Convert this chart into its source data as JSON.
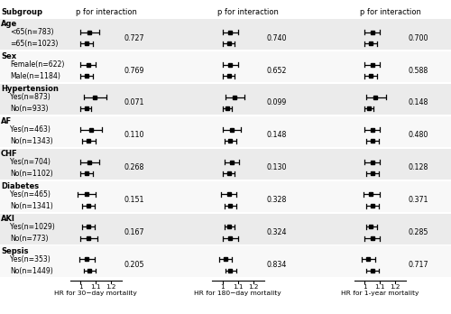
{
  "subgroups": [
    {
      "label": "Age",
      "header": true,
      "pkey": "age"
    },
    {
      "label": "<65(n=783)",
      "header": false,
      "d30": {
        "est": 1.06,
        "lo": 1.0,
        "hi": 1.12
      },
      "d180": {
        "est": 1.05,
        "lo": 1.0,
        "hi": 1.1
      },
      "d1y": {
        "est": 1.05,
        "lo": 1.0,
        "hi": 1.1
      }
    },
    {
      "label": "=65(n=1023)",
      "header": false,
      "d30": {
        "est": 1.04,
        "lo": 1.0,
        "hi": 1.08
      },
      "d180": {
        "est": 1.04,
        "lo": 1.0,
        "hi": 1.08
      },
      "d1y": {
        "est": 1.04,
        "lo": 1.0,
        "hi": 1.08
      }
    },
    {
      "label": "Sex",
      "header": true,
      "pkey": "sex"
    },
    {
      "label": "Female(n=622)",
      "header": false,
      "d30": {
        "est": 1.05,
        "lo": 1.0,
        "hi": 1.1
      },
      "d180": {
        "est": 1.05,
        "lo": 1.0,
        "hi": 1.1
      },
      "d1y": {
        "est": 1.05,
        "lo": 1.0,
        "hi": 1.1
      }
    },
    {
      "label": "Male(n=1184)",
      "header": false,
      "d30": {
        "est": 1.04,
        "lo": 1.0,
        "hi": 1.08
      },
      "d180": {
        "est": 1.04,
        "lo": 1.0,
        "hi": 1.08
      },
      "d1y": {
        "est": 1.04,
        "lo": 1.0,
        "hi": 1.08
      }
    },
    {
      "label": "Hypertension",
      "header": true,
      "pkey": "hypertension"
    },
    {
      "label": "Yes(n=873)",
      "header": false,
      "d30": {
        "est": 1.09,
        "lo": 1.02,
        "hi": 1.17
      },
      "d180": {
        "est": 1.08,
        "lo": 1.02,
        "hi": 1.14
      },
      "d1y": {
        "est": 1.07,
        "lo": 1.01,
        "hi": 1.14
      }
    },
    {
      "label": "No(n=933)",
      "header": false,
      "d30": {
        "est": 1.04,
        "lo": 1.0,
        "hi": 1.07
      },
      "d180": {
        "est": 1.03,
        "lo": 1.0,
        "hi": 1.06
      },
      "d1y": {
        "est": 1.03,
        "lo": 1.0,
        "hi": 1.06
      }
    },
    {
      "label": "AF",
      "header": true,
      "pkey": "af"
    },
    {
      "label": "Yes(n=463)",
      "header": false,
      "d30": {
        "est": 1.07,
        "lo": 1.0,
        "hi": 1.14
      },
      "d180": {
        "est": 1.06,
        "lo": 1.0,
        "hi": 1.12
      },
      "d1y": {
        "est": 1.05,
        "lo": 1.0,
        "hi": 1.1
      }
    },
    {
      "label": "No(n=1343)",
      "header": false,
      "d30": {
        "est": 1.05,
        "lo": 1.01,
        "hi": 1.1
      },
      "d180": {
        "est": 1.05,
        "lo": 1.01,
        "hi": 1.09
      },
      "d1y": {
        "est": 1.05,
        "lo": 1.01,
        "hi": 1.09
      }
    },
    {
      "label": "CHF",
      "header": true,
      "pkey": "chf"
    },
    {
      "label": "Yes(n=704)",
      "header": false,
      "d30": {
        "est": 1.06,
        "lo": 1.0,
        "hi": 1.12
      },
      "d180": {
        "est": 1.06,
        "lo": 1.01,
        "hi": 1.11
      },
      "d1y": {
        "est": 1.05,
        "lo": 1.0,
        "hi": 1.1
      }
    },
    {
      "label": "No(n=1102)",
      "header": false,
      "d30": {
        "est": 1.04,
        "lo": 1.0,
        "hi": 1.08
      },
      "d180": {
        "est": 1.04,
        "lo": 1.0,
        "hi": 1.08
      },
      "d1y": {
        "est": 1.05,
        "lo": 1.01,
        "hi": 1.09
      }
    },
    {
      "label": "Diabetes",
      "header": true,
      "pkey": "diabetes"
    },
    {
      "label": "Yes(n=465)",
      "header": false,
      "d30": {
        "est": 1.04,
        "lo": 0.98,
        "hi": 1.1
      },
      "d180": {
        "est": 1.04,
        "lo": 0.99,
        "hi": 1.09
      },
      "d1y": {
        "est": 1.04,
        "lo": 0.99,
        "hi": 1.1
      }
    },
    {
      "label": "No(n=1341)",
      "header": false,
      "d30": {
        "est": 1.05,
        "lo": 1.01,
        "hi": 1.09
      },
      "d180": {
        "est": 1.05,
        "lo": 1.01,
        "hi": 1.09
      },
      "d1y": {
        "est": 1.05,
        "lo": 1.01,
        "hi": 1.09
      }
    },
    {
      "label": "AKI",
      "header": true,
      "pkey": "aki"
    },
    {
      "label": "Yes(n=1029)",
      "header": false,
      "d30": {
        "est": 1.05,
        "lo": 1.01,
        "hi": 1.09
      },
      "d180": {
        "est": 1.04,
        "lo": 1.01,
        "hi": 1.08
      },
      "d1y": {
        "est": 1.04,
        "lo": 1.01,
        "hi": 1.08
      }
    },
    {
      "label": "No(n=773)",
      "header": false,
      "d30": {
        "est": 1.05,
        "lo": 1.0,
        "hi": 1.11
      },
      "d180": {
        "est": 1.05,
        "lo": 1.0,
        "hi": 1.1
      },
      "d1y": {
        "est": 1.05,
        "lo": 1.0,
        "hi": 1.1
      }
    },
    {
      "label": "Sepsis",
      "header": true,
      "pkey": "sepsis"
    },
    {
      "label": "Yes(n=353)",
      "header": false,
      "d30": {
        "est": 1.04,
        "lo": 0.99,
        "hi": 1.09
      },
      "d180": {
        "est": 1.02,
        "lo": 0.98,
        "hi": 1.06
      },
      "d1y": {
        "est": 1.02,
        "lo": 0.98,
        "hi": 1.07
      }
    },
    {
      "label": "No(n=1449)",
      "header": false,
      "d30": {
        "est": 1.06,
        "lo": 1.02,
        "hi": 1.1
      },
      "d180": {
        "est": 1.05,
        "lo": 1.02,
        "hi": 1.09
      },
      "d1y": {
        "est": 1.05,
        "lo": 1.01,
        "hi": 1.09
      }
    }
  ],
  "p_interaction": {
    "age": {
      "d30": 0.727,
      "d180": 0.74,
      "d1y": 0.7
    },
    "sex": {
      "d30": 0.769,
      "d180": 0.652,
      "d1y": 0.588
    },
    "hypertension": {
      "d30": 0.071,
      "d180": 0.099,
      "d1y": 0.148
    },
    "af": {
      "d30": 0.11,
      "d180": 0.148,
      "d1y": 0.48
    },
    "chf": {
      "d30": 0.268,
      "d180": 0.13,
      "d1y": 0.128
    },
    "diabetes": {
      "d30": 0.151,
      "d180": 0.328,
      "d1y": 0.371
    },
    "aki": {
      "d30": 0.167,
      "d180": 0.324,
      "d1y": 0.285
    },
    "sepsis": {
      "d30": 0.205,
      "d180": 0.834,
      "d1y": 0.717
    }
  },
  "xlim": [
    0.93,
    1.27
  ],
  "xticks": [
    1.0,
    1.1,
    1.2
  ],
  "xtick_labels": [
    "1",
    "1.1",
    "1.2"
  ],
  "xlabel_d30": "HR for 30−day mortality",
  "xlabel_d180": "HR for 180−day mortality",
  "xlabel_d1y": "HR for 1-year mortality",
  "col_header": "p for interaction",
  "subgroup_header": "Subgroup",
  "bg_even": "#ebebeb",
  "bg_odd": "#f8f8f8"
}
